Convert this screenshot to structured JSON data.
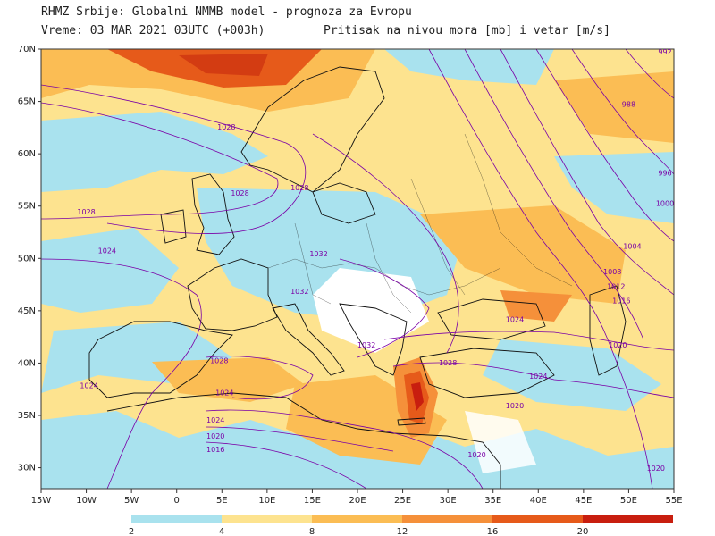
{
  "header": {
    "line1": "RHMZ Srbije: Globalni NMMB model - prognoza za Evropu",
    "line2_left": "Vreme: 03 MAR 2021 03UTC (+003h)",
    "line2_right": "Pritisak na nivou mora [mb] i vetar [m/s]"
  },
  "map": {
    "lon_range": [
      -15,
      55
    ],
    "lat_range": [
      28,
      70
    ],
    "lon_ticks": [
      "15W",
      "10W",
      "5W",
      "0",
      "5E",
      "10E",
      "15E",
      "20E",
      "25E",
      "30E",
      "35E",
      "40E",
      "45E",
      "50E",
      "55E"
    ],
    "lat_ticks": [
      "70N",
      "65N",
      "60N",
      "55N",
      "50N",
      "45N",
      "40N",
      "35N",
      "30N"
    ],
    "isobar_color": "#7a00a6",
    "isobar_labels": [
      {
        "text": "1028",
        "lon": 5.5,
        "lat": 62.3
      },
      {
        "text": "1028",
        "lon": 7,
        "lat": 56.0
      },
      {
        "text": "1028",
        "lon": -10,
        "lat": 54.2
      },
      {
        "text": "1028",
        "lon": 13.6,
        "lat": 56.5
      },
      {
        "text": "1024",
        "lon": -7.7,
        "lat": 50.5
      },
      {
        "text": "1032",
        "lon": 15.7,
        "lat": 50.2
      },
      {
        "text": "1032",
        "lon": 13.6,
        "lat": 46.6
      },
      {
        "text": "1032",
        "lon": 21,
        "lat": 41.5
      },
      {
        "text": "1028",
        "lon": 4.7,
        "lat": 40.0
      },
      {
        "text": "1028",
        "lon": 30,
        "lat": 39.8
      },
      {
        "text": "1024",
        "lon": 5.3,
        "lat": 36.9
      },
      {
        "text": "1024",
        "lon": 4.3,
        "lat": 34.3
      },
      {
        "text": "1020",
        "lon": 4.3,
        "lat": 32.8
      },
      {
        "text": "1016",
        "lon": 4.3,
        "lat": 31.5
      },
      {
        "text": "1024",
        "lon": -9.7,
        "lat": 37.6
      },
      {
        "text": "1024",
        "lon": 37.4,
        "lat": 43.9
      },
      {
        "text": "1024",
        "lon": 40,
        "lat": 38.5
      },
      {
        "text": "1020",
        "lon": 37.4,
        "lat": 35.7
      },
      {
        "text": "1020",
        "lon": 48.8,
        "lat": 41.5
      },
      {
        "text": "1020",
        "lon": 53,
        "lat": 29.7
      },
      {
        "text": "1020",
        "lon": 33.2,
        "lat": 31.0
      },
      {
        "text": "1016",
        "lon": 49.2,
        "lat": 45.7
      },
      {
        "text": "1012",
        "lon": 48.6,
        "lat": 47.1
      },
      {
        "text": "1008",
        "lon": 48.2,
        "lat": 48.5
      },
      {
        "text": "1004",
        "lon": 50.4,
        "lat": 50.9
      },
      {
        "text": "1000",
        "lon": 54.5,
        "lat": 55.0
      },
      {
        "text": "996",
        "lon": 54.4,
        "lat": 57.9
      },
      {
        "text": "988",
        "lon": 50,
        "lat": 64.5
      },
      {
        "text": "992",
        "lon": 55,
        "lat": 70
      }
    ]
  },
  "legend": {
    "colors": [
      "#a9e2ee",
      "#fde38f",
      "#fbbd54",
      "#f5903a",
      "#e65a1a",
      "#c81e0f"
    ],
    "labels": [
      "2",
      "4",
      "8",
      "12",
      "16",
      "20"
    ]
  }
}
